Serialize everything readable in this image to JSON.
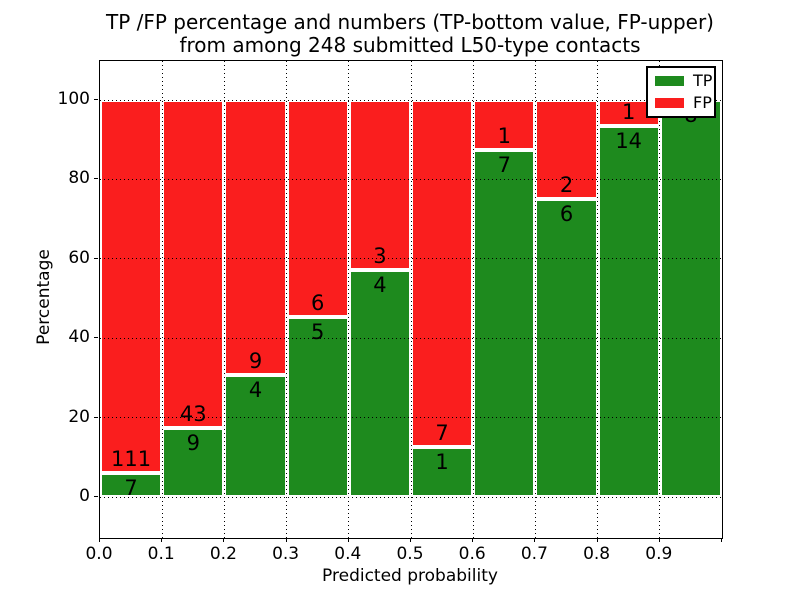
{
  "figure": {
    "title_line1": "TP /FP percentage and numbers (TP-bottom value, FP-upper)",
    "title_line2": "from among 248 submitted L50-type contacts"
  },
  "axes": {
    "xlabel": "Predicted probability",
    "ylabel": "Percentage",
    "ytick_labels": [
      "0",
      "20",
      "40",
      "60",
      "80",
      "100"
    ],
    "xtick_labels": [
      "0.0",
      "0.1",
      "0.2",
      "0.3",
      "0.4",
      "0.5",
      "0.6",
      "0.7",
      "0.8",
      "0.9"
    ]
  },
  "legend": {
    "items": [
      {
        "label": "TP",
        "color": "#1e8a1e"
      },
      {
        "label": "FP",
        "color": "#fa1e1e"
      }
    ]
  },
  "colors": {
    "tp_green": "#1e8a1e",
    "fp_red": "#fa1e1e",
    "bar_edge": "#ffffff",
    "grid": "#000000",
    "background": "#ffffff"
  },
  "chart_data": {
    "type": "bar",
    "stacked": true,
    "normalized": "each bin scaled to 100%: green = TP fraction (bottom), red = FP fraction (top)",
    "title": "TP /FP percentage and numbers (TP-bottom value, FP-upper) from among 248 submitted L50-type contacts",
    "xlabel": "Predicted probability",
    "ylabel": "Percentage",
    "xlim": [
      0.0,
      1.0
    ],
    "ylim": [
      -10,
      110
    ],
    "grid": "dotted black, horizontal at 0/20/40/60/80/100 and vertical at each 0.1, drawn above bars",
    "legend_position": "upper right",
    "bin_edges": [
      0.0,
      0.1,
      0.2,
      0.3,
      0.4,
      0.5,
      0.6,
      0.7,
      0.8,
      0.9,
      1.0
    ],
    "series": [
      {
        "name": "TP",
        "counts": [
          7,
          9,
          4,
          5,
          4,
          1,
          7,
          6,
          14,
          8
        ]
      },
      {
        "name": "FP",
        "counts": [
          111,
          43,
          9,
          6,
          3,
          7,
          1,
          2,
          1,
          0
        ]
      }
    ],
    "tp_percent": [
      5.93,
      17.31,
      30.77,
      45.45,
      57.14,
      12.5,
      87.5,
      75.0,
      93.33,
      100.0
    ],
    "total_contacts": 248
  }
}
